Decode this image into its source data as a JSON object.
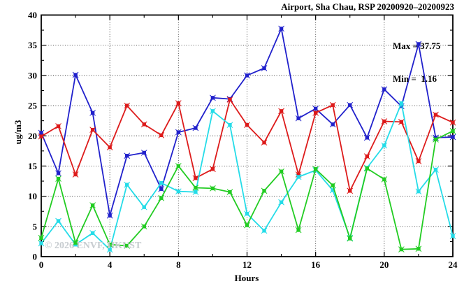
{
  "chart_data": {
    "type": "line",
    "title": "Airport, Sha Chau, RSP 20200920–20200923",
    "xlabel": "Hours",
    "ylabel": "ug/m3",
    "xlim": [
      0,
      24
    ],
    "ylim": [
      0,
      40
    ],
    "x_major_ticks": [
      0,
      4,
      8,
      12,
      16,
      20,
      24
    ],
    "x_minor_step": 2,
    "y_major_ticks": [
      0,
      5,
      10,
      15,
      20,
      25,
      30,
      35,
      40
    ],
    "y_minor_step": 2.5,
    "grid": {
      "style": "dotted",
      "x_lines": [
        4,
        8,
        12,
        16,
        20
      ],
      "y_lines": [
        5,
        10,
        15,
        20,
        25,
        30,
        35
      ]
    },
    "legend_position": "none",
    "annotations": {
      "max_label": "Max = 37.75",
      "min_label": "Min =  1.16"
    },
    "watermark": "© 2026 ENVF, HKUST",
    "x": [
      0,
      1,
      2,
      3,
      4,
      5,
      6,
      7,
      8,
      9,
      10,
      11,
      12,
      13,
      14,
      15,
      16,
      17,
      18,
      19,
      20,
      21,
      22,
      23,
      24
    ],
    "series": [
      {
        "name": "series-blue",
        "color": "#2121cc",
        "values": [
          20.5,
          13.8,
          30.1,
          23.8,
          6.8,
          16.7,
          17.2,
          11.2,
          20.6,
          21.3,
          26.3,
          26.1,
          30.0,
          31.2,
          37.75,
          22.9,
          24.5,
          21.9,
          25.1,
          19.7,
          27.7,
          24.9,
          35.2,
          19.7,
          19.8
        ]
      },
      {
        "name": "series-red",
        "color": "#dd1b1b",
        "values": [
          19.9,
          21.6,
          13.6,
          21.0,
          18.1,
          25.0,
          21.9,
          20.1,
          25.4,
          13.0,
          14.5,
          26.0,
          21.8,
          18.9,
          24.1,
          13.6,
          23.8,
          25.1,
          10.9,
          16.6,
          22.4,
          22.3,
          15.8,
          23.5,
          22.2
        ]
      },
      {
        "name": "series-cyan",
        "color": "#25dce8",
        "values": [
          2.2,
          5.9,
          2.0,
          3.9,
          1.16,
          11.9,
          8.2,
          12.2,
          10.8,
          10.7,
          24.1,
          21.8,
          7.1,
          4.3,
          9.0,
          13.2,
          14.3,
          11.0,
          3.1,
          14.7,
          18.4,
          25.4,
          10.8,
          14.4,
          3.4
        ]
      },
      {
        "name": "series-green",
        "color": "#22cc22",
        "values": [
          3.1,
          12.9,
          2.3,
          8.5,
          2.0,
          1.8,
          5.0,
          9.7,
          15.0,
          11.4,
          11.3,
          10.7,
          5.2,
          10.9,
          14.1,
          4.4,
          14.5,
          11.8,
          3.0,
          14.6,
          12.8,
          1.2,
          1.3,
          19.4,
          20.8
        ]
      }
    ]
  }
}
